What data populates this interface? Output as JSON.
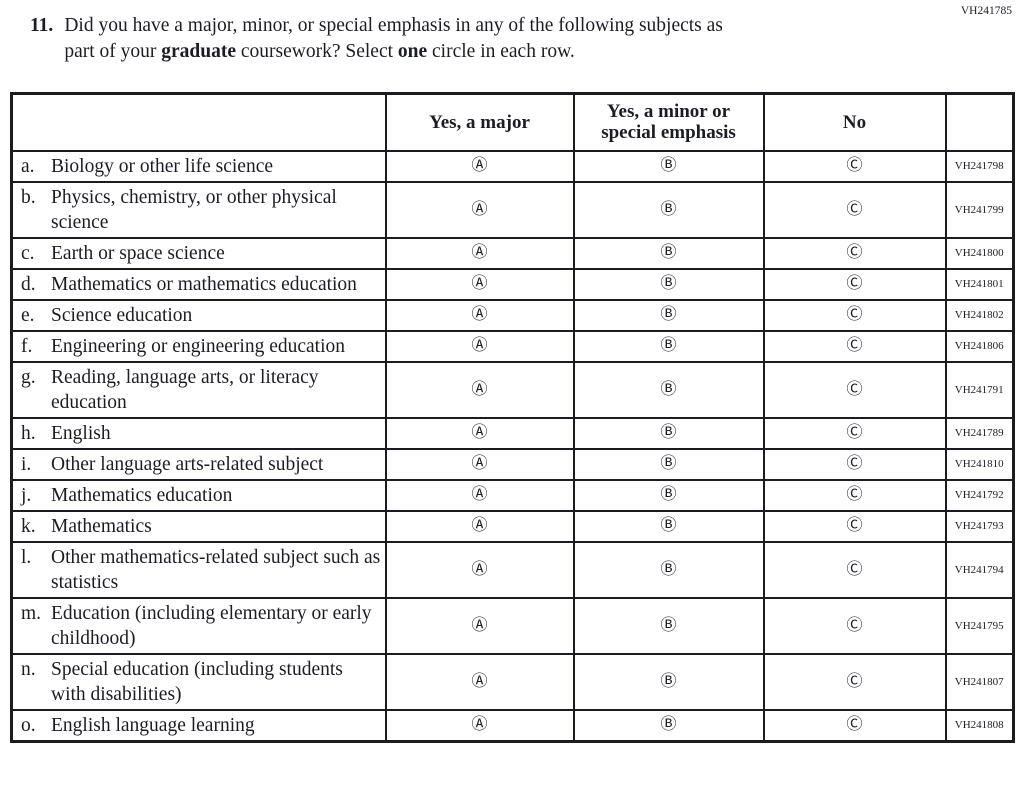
{
  "page": {
    "top_right_code": "VH241785"
  },
  "question": {
    "number": "11.",
    "segments": [
      {
        "text": "Did you have a major, minor, or special emphasis in any of the following subjects as",
        "bold": false,
        "br": true
      },
      {
        "text": "part of your ",
        "bold": false
      },
      {
        "text": "graduate",
        "bold": true
      },
      {
        "text": " coursework? Select ",
        "bold": false
      },
      {
        "text": "one",
        "bold": true
      },
      {
        "text": " circle in each row.",
        "bold": false
      }
    ]
  },
  "table": {
    "columns": [
      "",
      "Yes, a major",
      "Yes, a minor or special emphasis",
      "No",
      ""
    ],
    "options": [
      "Ⓐ",
      "Ⓑ",
      "Ⓒ"
    ],
    "rows": [
      {
        "letter": "a.",
        "label": "Biology or other life science",
        "code": "VH241798"
      },
      {
        "letter": "b.",
        "label": "Physics, chemistry, or other physical science",
        "code": "VH241799"
      },
      {
        "letter": "c.",
        "label": "Earth or space science",
        "code": "VH241800"
      },
      {
        "letter": "d.",
        "label": "Mathematics or mathematics education",
        "code": "VH241801"
      },
      {
        "letter": "e.",
        "label": "Science education",
        "code": "VH241802"
      },
      {
        "letter": "f.",
        "label": "Engineering or engineering education",
        "code": "VH241806"
      },
      {
        "letter": "g.",
        "label": "Reading, language arts, or literacy education",
        "code": "VH241791"
      },
      {
        "letter": "h.",
        "label": "English",
        "code": "VH241789"
      },
      {
        "letter": "i.",
        "label": "Other language arts-related subject",
        "code": "VH241810"
      },
      {
        "letter": "j.",
        "label": "Mathematics education",
        "code": "VH241792"
      },
      {
        "letter": "k.",
        "label": "Mathematics",
        "code": "VH241793"
      },
      {
        "letter": "l.",
        "label": "Other mathematics-related subject such as statistics",
        "code": "VH241794"
      },
      {
        "letter": "m.",
        "label": "Education (including elementary or early childhood)",
        "code": "VH241795"
      },
      {
        "letter": "n.",
        "label": "Special education (including students with disabilities)",
        "code": "VH241807"
      },
      {
        "letter": "o.",
        "label": "English language learning",
        "code": "VH241808"
      }
    ]
  }
}
